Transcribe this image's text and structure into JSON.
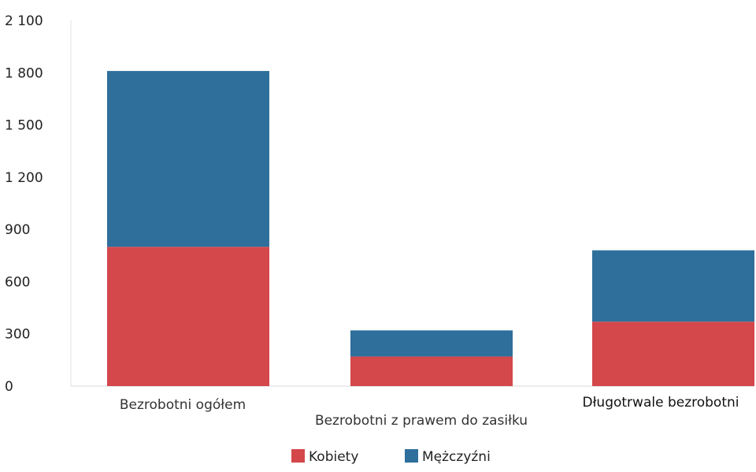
{
  "chart_data": {
    "type": "bar",
    "stacked": true,
    "title": "",
    "xlabel": "",
    "ylabel": "",
    "categories": [
      "Bezrobotni ogółem",
      "Bezrobotni z prawem do zasiłku",
      "Długotrwale bezrobotni"
    ],
    "series": [
      {
        "name": "Kobiety",
        "color": "#d4474b",
        "values": [
          800,
          170,
          370
        ]
      },
      {
        "name": "Mężczyźni",
        "color": "#2f6f9c",
        "values": [
          1010,
          150,
          410
        ]
      }
    ],
    "ylim": [
      0,
      2100
    ],
    "yticks": [
      0,
      300,
      600,
      900,
      1200,
      1500,
      1800,
      2100
    ],
    "ytick_labels": [
      "0",
      "300",
      "600",
      "900",
      "1 200",
      "1 500",
      "1 800",
      "2 100"
    ],
    "grid": false,
    "legend_position": "bottom-center"
  }
}
